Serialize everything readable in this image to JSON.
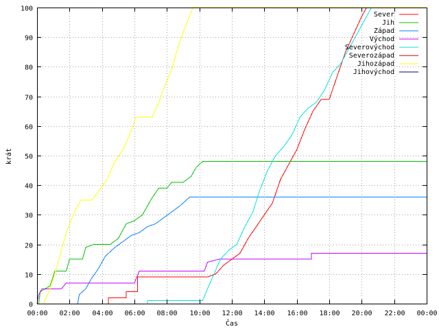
{
  "chart_data": {
    "type": "line",
    "xlabel": "Čas",
    "ylabel": "krát",
    "xlim": [
      0,
      24
    ],
    "ylim": [
      0,
      100
    ],
    "grid": true,
    "legend_position": "top-right",
    "x_ticks": [
      {
        "value": 0,
        "label": "00:00"
      },
      {
        "value": 2,
        "label": "02:00"
      },
      {
        "value": 4,
        "label": "04:00"
      },
      {
        "value": 6,
        "label": "06:00"
      },
      {
        "value": 8,
        "label": "08:00"
      },
      {
        "value": 10,
        "label": "10:00"
      },
      {
        "value": 12,
        "label": "12:00"
      },
      {
        "value": 14,
        "label": "14:00"
      },
      {
        "value": 16,
        "label": "16:00"
      },
      {
        "value": 18,
        "label": "18:00"
      },
      {
        "value": 20,
        "label": "20:00"
      },
      {
        "value": 22,
        "label": "22:00"
      },
      {
        "value": 24,
        "label": "00:00"
      }
    ],
    "y_ticks": [
      {
        "value": 0,
        "label": "0"
      },
      {
        "value": 10,
        "label": "10"
      },
      {
        "value": 20,
        "label": "20"
      },
      {
        "value": 30,
        "label": "30"
      },
      {
        "value": 40,
        "label": "40"
      },
      {
        "value": 50,
        "label": "50"
      },
      {
        "value": 60,
        "label": "60"
      },
      {
        "value": 70,
        "label": "70"
      },
      {
        "value": 80,
        "label": "80"
      },
      {
        "value": 90,
        "label": "90"
      },
      {
        "value": 100,
        "label": "100"
      }
    ],
    "series": [
      {
        "name": "Sever",
        "color": "#ff0000",
        "points": [
          [
            4.4,
            0
          ],
          [
            4.4,
            2
          ],
          [
            5.5,
            2
          ],
          [
            5.5,
            4
          ],
          [
            6.2,
            4
          ],
          [
            6.2,
            9
          ],
          [
            8.0,
            9
          ],
          [
            10.5,
            9
          ],
          [
            11.0,
            10
          ],
          [
            11.5,
            13
          ],
          [
            12.0,
            15
          ],
          [
            12.5,
            17
          ],
          [
            13.0,
            22
          ],
          [
            13.5,
            26
          ],
          [
            14.0,
            30
          ],
          [
            14.5,
            34
          ],
          [
            15.0,
            42
          ],
          [
            15.5,
            47
          ],
          [
            16.0,
            52
          ],
          [
            16.5,
            59
          ],
          [
            17.0,
            65
          ],
          [
            17.5,
            69
          ],
          [
            18.0,
            69
          ],
          [
            18.5,
            77
          ],
          [
            19.0,
            85
          ],
          [
            19.5,
            91
          ],
          [
            20.0,
            97
          ],
          [
            20.3,
            100
          ],
          [
            24,
            100
          ]
        ]
      },
      {
        "name": "Jih",
        "color": "#00c000",
        "points": [
          [
            0.1,
            0
          ],
          [
            0.2,
            4
          ],
          [
            0.8,
            6
          ],
          [
            1.1,
            11
          ],
          [
            1.8,
            11
          ],
          [
            2.0,
            15
          ],
          [
            2.8,
            15
          ],
          [
            3.0,
            19
          ],
          [
            3.5,
            20
          ],
          [
            4.5,
            20
          ],
          [
            5.0,
            22
          ],
          [
            5.5,
            27
          ],
          [
            6.0,
            28
          ],
          [
            6.5,
            30
          ],
          [
            7.0,
            35
          ],
          [
            7.5,
            39
          ],
          [
            8.0,
            39
          ],
          [
            8.3,
            41
          ],
          [
            9.0,
            41
          ],
          [
            9.5,
            43
          ],
          [
            9.8,
            46
          ],
          [
            10.2,
            48
          ],
          [
            24,
            48
          ]
        ]
      },
      {
        "name": "Západ",
        "color": "#0080ff",
        "points": [
          [
            2.5,
            0
          ],
          [
            2.6,
            3
          ],
          [
            3.0,
            5
          ],
          [
            3.3,
            8
          ],
          [
            3.8,
            12
          ],
          [
            4.2,
            16
          ],
          [
            4.8,
            19
          ],
          [
            5.3,
            21
          ],
          [
            5.8,
            23
          ],
          [
            6.3,
            24
          ],
          [
            6.8,
            26
          ],
          [
            7.3,
            27
          ],
          [
            7.8,
            29
          ],
          [
            8.3,
            31
          ],
          [
            8.8,
            33
          ],
          [
            9.4,
            36
          ],
          [
            24,
            36
          ]
        ]
      },
      {
        "name": "Východ",
        "color": "#c000ff",
        "points": [
          [
            0.0,
            0
          ],
          [
            0.1,
            3
          ],
          [
            0.3,
            5
          ],
          [
            1.5,
            5
          ],
          [
            1.8,
            7
          ],
          [
            6.0,
            7
          ],
          [
            6.3,
            11
          ],
          [
            10.3,
            11
          ],
          [
            10.5,
            14
          ],
          [
            11.2,
            15
          ],
          [
            16.9,
            15
          ],
          [
            16.9,
            17
          ],
          [
            24,
            17
          ]
        ]
      },
      {
        "name": "Severovýchod",
        "color": "#00e0e0",
        "points": [
          [
            6.8,
            0
          ],
          [
            6.8,
            1
          ],
          [
            10.2,
            1
          ],
          [
            10.5,
            5
          ],
          [
            10.9,
            10
          ],
          [
            11.3,
            15
          ],
          [
            11.8,
            18
          ],
          [
            12.3,
            20
          ],
          [
            12.8,
            26
          ],
          [
            13.3,
            31
          ],
          [
            13.7,
            38
          ],
          [
            14.2,
            45
          ],
          [
            14.7,
            50
          ],
          [
            15.2,
            53
          ],
          [
            15.7,
            57
          ],
          [
            16.2,
            63
          ],
          [
            16.7,
            66
          ],
          [
            17.2,
            68
          ],
          [
            17.7,
            72
          ],
          [
            18.2,
            78
          ],
          [
            18.7,
            81
          ],
          [
            19.2,
            86
          ],
          [
            19.7,
            91
          ],
          [
            20.2,
            96
          ],
          [
            20.6,
            100
          ],
          [
            24,
            100
          ]
        ]
      },
      {
        "name": "Severozápad",
        "color": "#c00000",
        "points": [
          [
            24,
            100
          ]
        ]
      },
      {
        "name": "Jihozápad",
        "color": "#ffff00",
        "points": [
          [
            0.4,
            0
          ],
          [
            0.8,
            5
          ],
          [
            1.3,
            14
          ],
          [
            1.8,
            24
          ],
          [
            2.3,
            31
          ],
          [
            2.7,
            35
          ],
          [
            3.4,
            35
          ],
          [
            3.8,
            38
          ],
          [
            4.3,
            42
          ],
          [
            4.8,
            48
          ],
          [
            5.3,
            52
          ],
          [
            5.7,
            57
          ],
          [
            6.1,
            63
          ],
          [
            7.1,
            63
          ],
          [
            7.5,
            68
          ],
          [
            7.9,
            74
          ],
          [
            8.3,
            79
          ],
          [
            8.7,
            87
          ],
          [
            9.1,
            93
          ],
          [
            9.6,
            100
          ],
          [
            24,
            100
          ]
        ]
      },
      {
        "name": "Jihovýchod",
        "color": "#000080",
        "points": [
          [
            24,
            100
          ]
        ]
      }
    ]
  }
}
